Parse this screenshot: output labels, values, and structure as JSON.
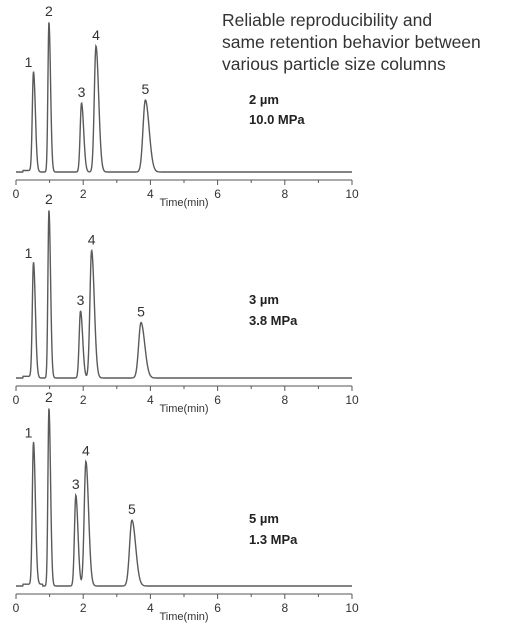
{
  "caption": {
    "line1": "Reliable reproducibility and",
    "line2": "same retention behavior between",
    "line3": "various particle size columns"
  },
  "colors": {
    "trace": "#5a5a5a",
    "axis": "#555555",
    "text": "#333333"
  },
  "chart_data": [
    {
      "type": "line",
      "title": "",
      "xlabel": "Time(min)",
      "ylabel": "",
      "xlim": [
        0,
        10
      ],
      "xticks": [
        "0",
        "2",
        "4",
        "6",
        "8",
        "10"
      ],
      "grid": false,
      "annotations": [
        "2 µm",
        "10.0 MPa"
      ],
      "peaks": [
        {
          "label": "1",
          "time": 0.52,
          "height": 0.66
        },
        {
          "label": "2",
          "time": 0.98,
          "height": 1.0
        },
        {
          "label": "3",
          "time": 1.95,
          "height": 0.46
        },
        {
          "label": "4",
          "time": 2.38,
          "height": 0.84
        },
        {
          "label": "5",
          "time": 3.85,
          "height": 0.48
        }
      ]
    },
    {
      "type": "line",
      "title": "",
      "xlabel": "Time(min)",
      "ylabel": "",
      "xlim": [
        0,
        10
      ],
      "xticks": [
        "0",
        "2",
        "4",
        "6",
        "8",
        "10"
      ],
      "grid": false,
      "annotations": [
        "3 µm",
        "3.8 MPa"
      ],
      "peaks": [
        {
          "label": "1",
          "time": 0.52,
          "height": 0.68
        },
        {
          "label": "2",
          "time": 0.98,
          "height": 1.0
        },
        {
          "label": "3",
          "time": 1.92,
          "height": 0.4
        },
        {
          "label": "4",
          "time": 2.25,
          "height": 0.76
        },
        {
          "label": "5",
          "time": 3.72,
          "height": 0.33
        }
      ]
    },
    {
      "type": "line",
      "title": "",
      "xlabel": "Time(min)",
      "ylabel": "",
      "xlim": [
        0,
        10
      ],
      "xticks": [
        "0",
        "2",
        "4",
        "6",
        "8",
        "10"
      ],
      "grid": false,
      "annotations": [
        "5 µm",
        "1.3 MPa"
      ],
      "peaks": [
        {
          "label": "1",
          "time": 0.52,
          "height": 0.8
        },
        {
          "label": "2",
          "time": 0.98,
          "height": 1.0
        },
        {
          "label": "3",
          "time": 1.78,
          "height": 0.51
        },
        {
          "label": "4",
          "time": 2.08,
          "height": 0.7
        },
        {
          "label": "5",
          "time": 3.45,
          "height": 0.37
        }
      ]
    }
  ]
}
